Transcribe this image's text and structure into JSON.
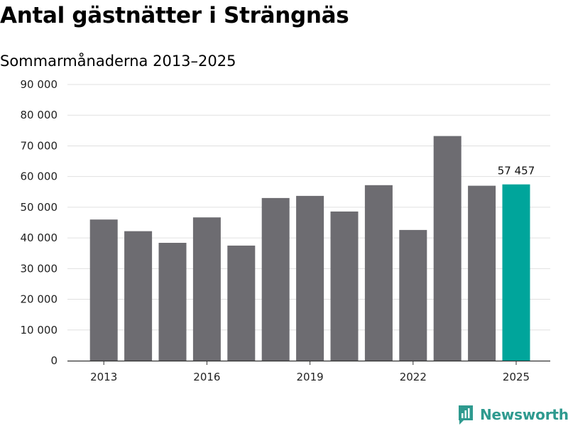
{
  "title": "Antal gästnätter i Strängnäs",
  "subtitle": "Sommarmånaderna 2013–2025",
  "brand": {
    "name": "Newsworthy",
    "icon": "newsworthy-logo-icon",
    "color": "#2e9a8f"
  },
  "colors": {
    "bar": "#6d6c71",
    "highlight": "#00a59b",
    "grid": "#e0e0e0",
    "axis": "#333333"
  },
  "chart_data": {
    "type": "bar",
    "title": "Antal gästnätter i Strängnäs",
    "subtitle": "Sommarmånaderna 2013–2025",
    "categories": [
      "2013",
      "2014",
      "2015",
      "2016",
      "2017",
      "2018",
      "2019",
      "2020",
      "2021",
      "2022",
      "2023",
      "2024",
      "2025"
    ],
    "values": [
      46000,
      42200,
      38400,
      46700,
      37500,
      53000,
      53700,
      48600,
      57200,
      42600,
      73200,
      57000,
      57457
    ],
    "highlight_index": 12,
    "data_labels": [
      {
        "index": 12,
        "text": "57 457"
      }
    ],
    "x_tick_labels": [
      "2013",
      "2016",
      "2019",
      "2022",
      "2025"
    ],
    "y_ticks": [
      0,
      10000,
      20000,
      30000,
      40000,
      50000,
      60000,
      70000,
      80000,
      90000
    ],
    "y_tick_labels": [
      "0",
      "10 000",
      "20 000",
      "30 000",
      "40 000",
      "50 000",
      "60 000",
      "70 000",
      "80 000",
      "90 000"
    ],
    "ylim": [
      0,
      90000
    ],
    "grid": true,
    "legend": "none"
  }
}
